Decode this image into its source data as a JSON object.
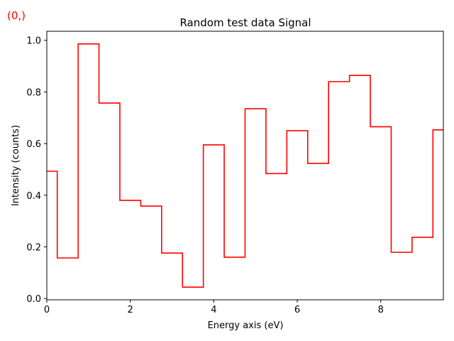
{
  "corner_label": "(0,)",
  "chart_data": {
    "type": "line",
    "drawstyle": "steps-mid",
    "title": "Random test data Signal",
    "xlabel": "Energy axis (eV)",
    "ylabel": "Intensity (counts)",
    "xlim": [
      0,
      9.5
    ],
    "ylim": [
      -0.005,
      1.035
    ],
    "xticks": [
      0,
      2,
      4,
      6,
      8
    ],
    "yticks": [
      0.0,
      0.2,
      0.4,
      0.6,
      0.8,
      1.0
    ],
    "xtick_labels": [
      "0",
      "2",
      "4",
      "6",
      "8"
    ],
    "ytick_labels": [
      "0.0",
      "0.2",
      "0.4",
      "0.6",
      "0.8",
      "1.0"
    ],
    "grid": false,
    "series": [
      {
        "color": "#ff0000",
        "x": [
          0.0,
          0.5,
          1.0,
          1.5,
          2.0,
          2.5,
          3.0,
          3.5,
          4.0,
          4.5,
          5.0,
          5.5,
          6.0,
          6.5,
          7.0,
          7.5,
          8.0,
          8.5,
          9.0,
          9.5
        ],
        "y": [
          0.493,
          0.157,
          0.986,
          0.757,
          0.38,
          0.358,
          0.176,
          0.044,
          0.595,
          0.16,
          0.735,
          0.484,
          0.65,
          0.523,
          0.84,
          0.864,
          0.665,
          0.179,
          0.237,
          0.653
        ]
      }
    ]
  }
}
